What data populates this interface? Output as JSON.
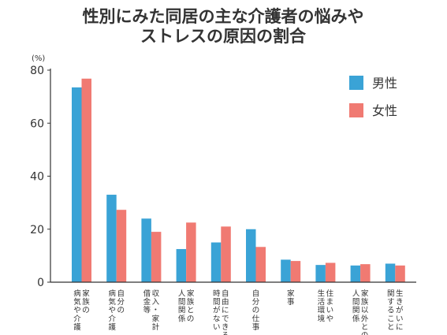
{
  "colors": {
    "male": "#3aa3d6",
    "female": "#f07a72",
    "axis": "#333333",
    "text": "#333333"
  },
  "chart_data": {
    "type": "bar",
    "title_lines": [
      "性別にみた同居の主な介護者の悩みや",
      "ストレスの原因の割合"
    ],
    "unit": "(%)",
    "ylim": [
      0,
      80
    ],
    "yticks": [
      0,
      20,
      40,
      60,
      80
    ],
    "grid": false,
    "legend_position": "top-right",
    "categories": [
      [
        "家族の",
        "病気や介護"
      ],
      [
        "自分の",
        "病気や介護"
      ],
      [
        "収入・家計",
        "借金等"
      ],
      [
        "家族との",
        "人間関係"
      ],
      [
        "自由にできる",
        "時間がない"
      ],
      [
        "自分の仕事"
      ],
      [
        "家事"
      ],
      [
        "住まいや",
        "生活環境"
      ],
      [
        "家族以外との",
        "人間関係"
      ],
      [
        "生きがいに",
        "関すること"
      ]
    ],
    "series": [
      {
        "name": "男性",
        "values": [
          73.5,
          33,
          24,
          12.5,
          15,
          20,
          8.5,
          6.5,
          6.3,
          7
        ]
      },
      {
        "name": "女性",
        "values": [
          76.8,
          27.3,
          19,
          22.5,
          21,
          13.3,
          8,
          7.3,
          6.8,
          6.3
        ]
      }
    ]
  }
}
